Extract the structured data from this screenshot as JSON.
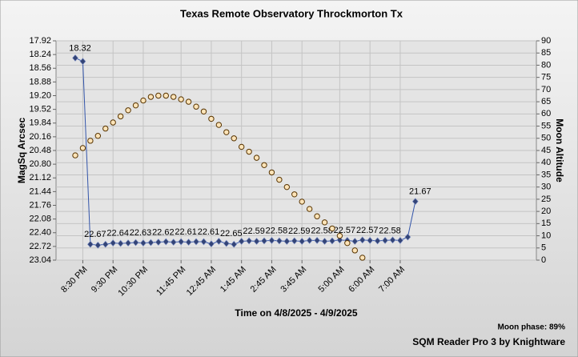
{
  "chart_data": {
    "type": "line",
    "title": "Texas Remote Observatory   Throckmorton Tx",
    "xlabel": "Time on 4/8/2025 - 4/9/2025",
    "ylabel": "MagSq Arcsec",
    "y2label": "Moon Altitude",
    "footer_note": "Moon phase: 89%",
    "footer": "SQM Reader Pro 3 by Knightware",
    "categories": [
      null,
      "8:30 PM",
      null,
      null,
      null,
      "9:30 PM",
      null,
      null,
      null,
      "10:30 PM",
      null,
      null,
      null,
      null,
      "11:45 PM",
      null,
      null,
      null,
      "12:45 AM",
      null,
      null,
      null,
      "1:45 AM",
      null,
      null,
      null,
      "2:45 AM",
      null,
      null,
      null,
      "3:45 AM",
      null,
      null,
      null,
      null,
      "5:00 AM",
      null,
      null,
      null,
      "6:00 AM",
      null,
      null,
      null,
      "7:00 AM",
      null,
      null
    ],
    "ylim": [
      17.92,
      23.04
    ],
    "yinverted": true,
    "yticks": [
      17.92,
      18.24,
      18.56,
      18.88,
      {
        "value": 19.2,
        "label": "19.20"
      },
      19.52,
      19.84,
      20.16,
      20.48,
      {
        "value": 20.8,
        "label": "20.80"
      },
      21.12,
      21.44,
      21.76,
      22.08,
      {
        "value": 22.4,
        "label": "22.40"
      },
      22.72,
      23.04
    ],
    "y2lim": [
      0,
      90
    ],
    "y2ticks": [
      0,
      5,
      10,
      15,
      20,
      25,
      30,
      35,
      40,
      45,
      50,
      55,
      60,
      65,
      70,
      75,
      80,
      85,
      90
    ],
    "grid": true,
    "series": [
      {
        "name": "MagSq Arcsec",
        "color": "#3355aa",
        "marker": "diamond",
        "values": [
          18.32,
          18.4,
          22.67,
          22.69,
          22.67,
          22.64,
          22.65,
          22.64,
          22.63,
          22.64,
          22.63,
          22.62,
          22.61,
          22.62,
          22.61,
          22.62,
          22.61,
          22.61,
          22.66,
          22.6,
          22.65,
          22.67,
          22.6,
          22.59,
          22.6,
          22.59,
          22.58,
          22.59,
          22.6,
          22.59,
          22.6,
          22.58,
          22.58,
          22.6,
          22.59,
          22.57,
          22.58,
          22.6,
          22.57,
          22.58,
          22.59,
          22.58,
          22.57,
          22.58,
          22.5,
          21.67
        ],
        "value_labels": [
          "18.32",
          null,
          "22.67",
          null,
          null,
          "22.64",
          null,
          null,
          "22.63",
          null,
          null,
          "22.62",
          null,
          null,
          "22.61",
          null,
          null,
          "22.61",
          null,
          null,
          "22.65",
          null,
          null,
          "22.59",
          null,
          null,
          "22.58",
          null,
          null,
          "22.59",
          null,
          null,
          "22.58",
          null,
          null,
          "22.57",
          null,
          null,
          "22.57",
          null,
          null,
          "22.58",
          null,
          null,
          null,
          "21.67"
        ]
      },
      {
        "name": "Moon Altitude",
        "color": "#ffe4b8",
        "marker": "circle",
        "axis": "y2",
        "values": [
          43,
          46,
          49,
          51,
          54,
          56.5,
          59,
          61.5,
          63.5,
          65.5,
          67,
          67.5,
          67.5,
          67,
          66,
          65,
          63,
          61,
          58,
          55.5,
          52.5,
          50,
          46.5,
          44.5,
          42,
          39,
          36,
          33,
          30,
          27,
          24,
          21,
          18,
          15.5,
          13,
          10,
          7,
          4,
          1,
          null,
          null,
          null,
          null,
          null,
          null,
          null
        ]
      }
    ]
  }
}
